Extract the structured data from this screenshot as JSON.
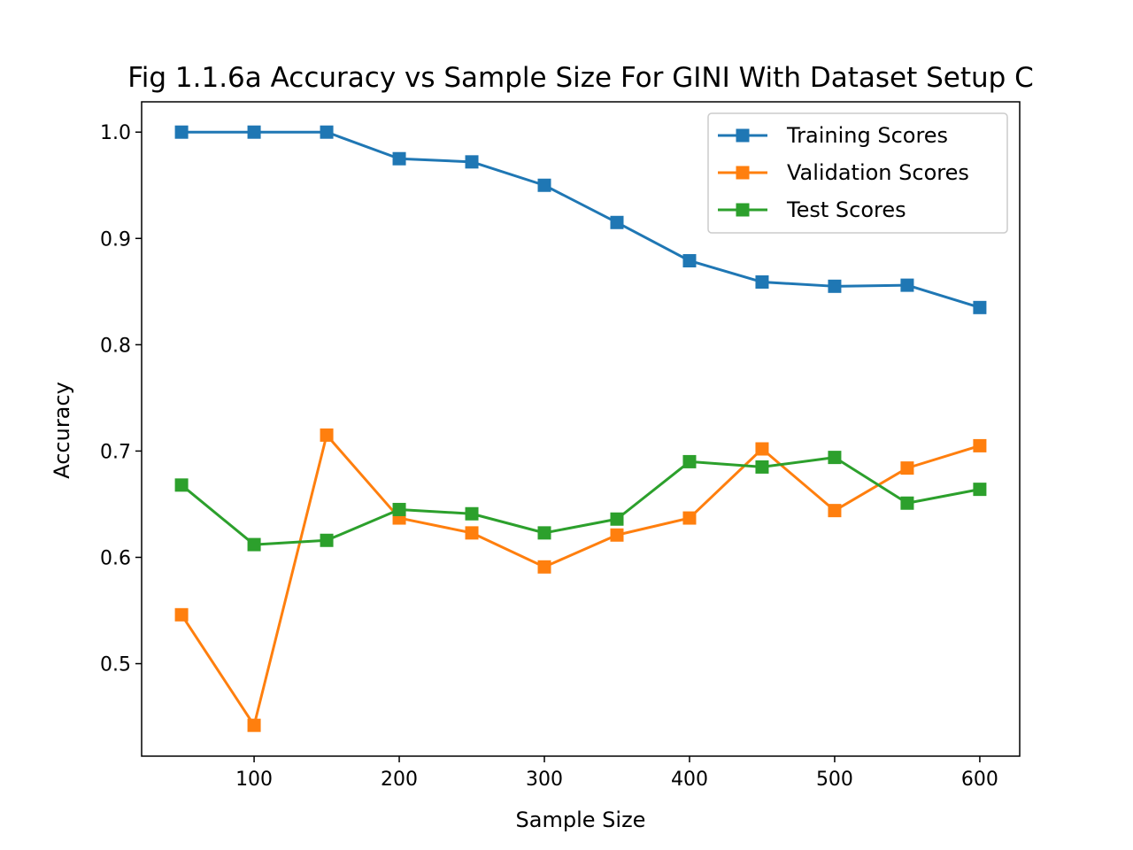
{
  "chart_data": {
    "type": "line",
    "title": "Fig 1.1.6a Accuracy vs Sample Size For GINI With Dataset Setup C",
    "xlabel": "Sample Size",
    "ylabel": "Accuracy",
    "xlim": [
      22.5,
      627.5
    ],
    "ylim": [
      0.413,
      1.0285
    ],
    "xticks": [
      100,
      200,
      300,
      400,
      500,
      600
    ],
    "yticks": [
      0.5,
      0.6,
      0.7,
      0.8,
      0.9,
      1.0
    ],
    "xtick_labels": [
      "100",
      "200",
      "300",
      "400",
      "500",
      "600"
    ],
    "ytick_labels": [
      "0.5",
      "0.6",
      "0.7",
      "0.8",
      "0.9",
      "1.0"
    ],
    "grid": false,
    "legend_position": "top-right",
    "marker": "square",
    "x": [
      50,
      100,
      150,
      200,
      250,
      300,
      350,
      400,
      450,
      500,
      550,
      600
    ],
    "series": [
      {
        "name": "Training Scores",
        "color": "#1f77b4",
        "values": [
          1.0,
          1.0,
          1.0,
          0.975,
          0.972,
          0.95,
          0.915,
          0.879,
          0.859,
          0.855,
          0.856,
          0.835
        ]
      },
      {
        "name": "Validation Scores",
        "color": "#ff7f0e",
        "values": [
          0.546,
          0.442,
          0.715,
          0.637,
          0.623,
          0.591,
          0.621,
          0.637,
          0.702,
          0.644,
          0.684,
          0.705
        ]
      },
      {
        "name": "Test Scores",
        "color": "#2ca02c",
        "values": [
          0.668,
          0.612,
          0.616,
          0.645,
          0.641,
          0.623,
          0.636,
          0.69,
          0.685,
          0.694,
          0.651,
          0.664
        ]
      }
    ]
  }
}
